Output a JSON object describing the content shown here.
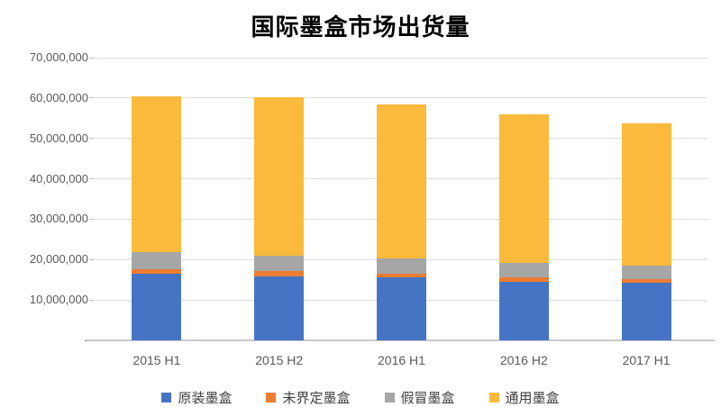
{
  "title": "国际墨盒市场出货量",
  "chart_data": {
    "type": "bar",
    "stacked": true,
    "title": "国际墨盒市场出货量",
    "xlabel": "",
    "ylabel": "",
    "categories": [
      "2015 H1",
      "2015 H2",
      "2016 H1",
      "2016 H2",
      "2017 H1"
    ],
    "series": [
      {
        "name": "原装墨盒",
        "color": "#4674c5",
        "values": [
          16600000,
          15800000,
          15700000,
          14500000,
          14200000
        ]
      },
      {
        "name": "未界定墨盒",
        "color": "#ed7d31",
        "values": [
          1100000,
          1400000,
          900000,
          1000000,
          1000000
        ]
      },
      {
        "name": "假冒墨盒",
        "color": "#a6a6a6",
        "values": [
          4100000,
          3800000,
          3600000,
          3700000,
          3300000
        ]
      },
      {
        "name": "通用墨盒",
        "color": "#fbba3b",
        "values": [
          38600000,
          39100000,
          38300000,
          36800000,
          35300000
        ]
      }
    ],
    "totals": [
      60400000,
      60100000,
      58500000,
      56000000,
      53800000
    ],
    "ylim": [
      0,
      70000000
    ],
    "ytick_values": [
      70000000,
      60000000,
      50000000,
      40000000,
      30000000,
      20000000,
      10000000,
      0
    ],
    "ytick_labels": [
      "70,000,000",
      "60,000,000",
      "50,000,000",
      "40,000,000",
      "30,000,000",
      "20,000,000",
      "10,000,000",
      "-"
    ],
    "grid": true,
    "legend_position": "bottom"
  }
}
